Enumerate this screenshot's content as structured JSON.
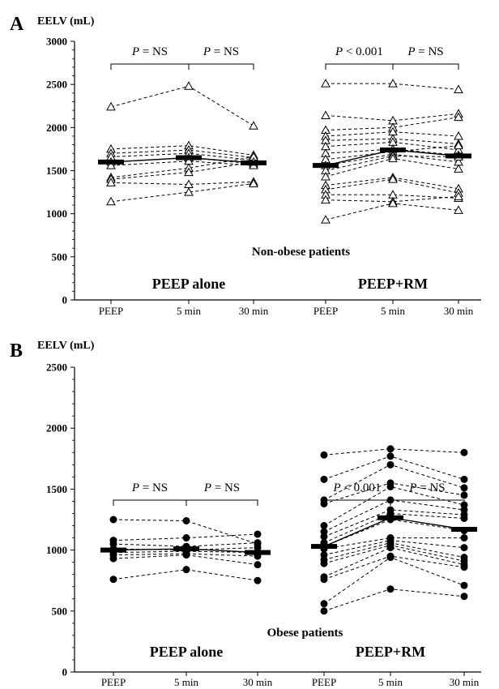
{
  "colors": {
    "ink": "#000000",
    "paper": "#ffffff"
  },
  "chart_data": [
    {
      "type": "scatter",
      "panel_label": "A",
      "ylabel": "EELV (mL)",
      "ylim": [
        0,
        3000
      ],
      "yticks": [
        0,
        500,
        1000,
        1500,
        2000,
        2500,
        3000
      ],
      "categories": [
        "PEEP",
        "5 min",
        "30 min",
        "PEEP",
        "5 min",
        "30 min"
      ],
      "marker": "triangle-open",
      "group_label": "Non-obese patients",
      "conditions": [
        {
          "label": "PEEP alone",
          "p_values": [
            "P = NS",
            "P = NS"
          ],
          "means": [
            1600,
            1650,
            1590
          ],
          "subjects": [
            [
              2240,
              2480,
              2020
            ],
            [
              1750,
              1790,
              1680
            ],
            [
              1700,
              1740,
              1650
            ],
            [
              1660,
              1700,
              1620
            ],
            [
              1600,
              1650,
              1580
            ],
            [
              1560,
              1610,
              1560
            ],
            [
              1420,
              1530,
              1660
            ],
            [
              1400,
              1480,
              1600
            ],
            [
              1360,
              1340,
              1370
            ],
            [
              1140,
              1250,
              1350
            ]
          ]
        },
        {
          "label": "PEEP+RM",
          "p_values": [
            "P < 0.001",
            "P = NS"
          ],
          "means": [
            1560,
            1740,
            1670
          ],
          "subjects": [
            [
              2510,
              2510,
              2440
            ],
            [
              2140,
              2080,
              2160
            ],
            [
              1970,
              2000,
              2120
            ],
            [
              1900,
              1950,
              1900
            ],
            [
              1850,
              1870,
              1810
            ],
            [
              1780,
              1830,
              1740
            ],
            [
              1700,
              1750,
              1680
            ],
            [
              1630,
              1720,
              1790
            ],
            [
              1560,
              1690,
              1600
            ],
            [
              1500,
              1670,
              1660
            ],
            [
              1430,
              1640,
              1520
            ],
            [
              1330,
              1420,
              1290
            ],
            [
              1280,
              1400,
              1240
            ],
            [
              1220,
              1220,
              1180
            ],
            [
              1160,
              1140,
              1200
            ],
            [
              930,
              1120,
              1040
            ]
          ]
        }
      ]
    },
    {
      "type": "scatter",
      "panel_label": "B",
      "ylabel": "EELV (mL)",
      "ylim": [
        0,
        2500
      ],
      "yticks": [
        0,
        500,
        1000,
        1500,
        2000,
        2500
      ],
      "categories": [
        "PEEP",
        "5 min",
        "30 min",
        "PEEP",
        "5 min",
        "30 min"
      ],
      "marker": "circle",
      "group_label": "Obese patients",
      "conditions": [
        {
          "label": "PEEP alone",
          "p_values": [
            "P = NS",
            "P = NS"
          ],
          "means": [
            1000,
            1010,
            980
          ],
          "subjects": [
            [
              1250,
              1240,
              1050
            ],
            [
              1080,
              1100,
              1130
            ],
            [
              1050,
              1030,
              1060
            ],
            [
              1010,
              1000,
              1020
            ],
            [
              980,
              990,
              980
            ],
            [
              960,
              970,
              950
            ],
            [
              930,
              960,
              880
            ],
            [
              760,
              840,
              750
            ]
          ]
        },
        {
          "label": "PEEP+RM",
          "p_values": [
            "P < 0.001",
            "P = NS"
          ],
          "means": [
            1030,
            1265,
            1170
          ],
          "subjects": [
            [
              1780,
              1830,
              1800
            ],
            [
              1580,
              1770,
              1580
            ],
            [
              1410,
              1700,
              1510
            ],
            [
              1380,
              1550,
              1450
            ],
            [
              1200,
              1520,
              1370
            ],
            [
              1150,
              1410,
              1330
            ],
            [
              1110,
              1330,
              1290
            ],
            [
              1060,
              1300,
              1260
            ],
            [
              1030,
              1250,
              1160
            ],
            [
              1010,
              1100,
              1100
            ],
            [
              960,
              1080,
              1020
            ],
            [
              920,
              1060,
              940
            ],
            [
              890,
              1040,
              910
            ],
            [
              780,
              1020,
              880
            ],
            [
              760,
              950,
              860
            ],
            [
              560,
              940,
              710
            ],
            [
              500,
              680,
              620
            ]
          ]
        }
      ]
    }
  ]
}
